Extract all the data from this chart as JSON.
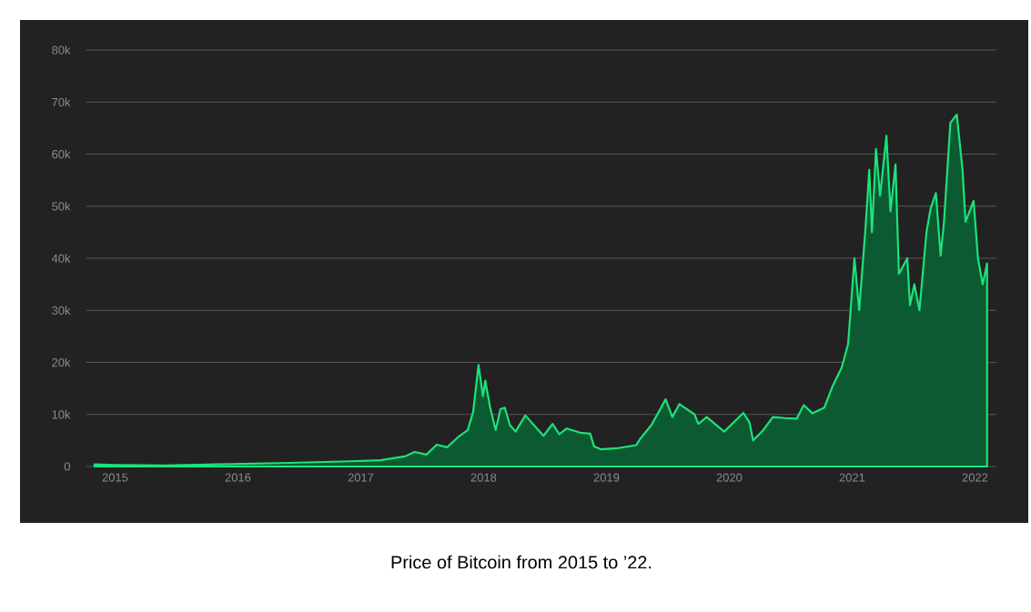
{
  "chart_data": {
    "type": "area",
    "color": "#1de27a",
    "grid": "y",
    "annotations": [
      "Price of Bitcoin from 2015 to ’22."
    ],
    "xlim": [
      "2014-10-08",
      "2022-03-06"
    ],
    "xticks": [
      {
        "value": "2015-01-01",
        "label": "2015"
      },
      {
        "value": "2016-01-01",
        "label": "2016"
      },
      {
        "value": "2017-01-01",
        "label": "2017"
      },
      {
        "value": "2018-01-01",
        "label": "2018"
      },
      {
        "value": "2019-01-01",
        "label": "2019"
      },
      {
        "value": "2020-01-01",
        "label": "2020"
      },
      {
        "value": "2021-01-01",
        "label": "2021"
      },
      {
        "value": "2022-01-01",
        "label": "2022"
      }
    ],
    "ylim": [
      0,
      80000
    ],
    "yticks": [
      0,
      {
        "value": 10000,
        "label": "10k"
      },
      {
        "value": 20000,
        "label": "20k"
      },
      {
        "value": 30000,
        "label": "30k"
      },
      {
        "value": 40000,
        "label": "40k"
      },
      {
        "value": 50000,
        "label": "50k"
      },
      {
        "value": 60000,
        "label": "60k"
      },
      {
        "value": 70000,
        "label": "70k"
      },
      {
        "value": 80000,
        "label": "80k"
      }
    ],
    "x": [
      "2014-11-01",
      "2015-01-01",
      "2015-06-01",
      "2015-11-01",
      "2016-06-01",
      "2016-12-01",
      "2017-03-01",
      "2017-05-15",
      "2017-06-10",
      "2017-07-15",
      "2017-08-15",
      "2017-09-15",
      "2017-10-20",
      "2017-11-15",
      "2017-12-01",
      "2017-12-17",
      "2017-12-30",
      "2018-01-06",
      "2018-01-20",
      "2018-02-06",
      "2018-02-20",
      "2018-03-05",
      "2018-03-20",
      "2018-04-06",
      "2018-05-05",
      "2018-06-28",
      "2018-07-25",
      "2018-08-14",
      "2018-09-05",
      "2018-10-15",
      "2018-11-14",
      "2018-11-25",
      "2018-12-15",
      "2019-02-01",
      "2019-03-31",
      "2019-04-10",
      "2019-05-15",
      "2019-06-26",
      "2019-07-16",
      "2019-08-06",
      "2019-09-20",
      "2019-10-01",
      "2019-10-26",
      "2019-12-17",
      "2020-02-12",
      "2020-03-01",
      "2020-03-12",
      "2020-04-10",
      "2020-05-10",
      "2020-06-15",
      "2020-07-20",
      "2020-08-10",
      "2020-09-05",
      "2020-10-10",
      "2020-11-05",
      "2020-12-01",
      "2020-12-20",
      "2021-01-08",
      "2021-01-22",
      "2021-02-10",
      "2021-02-21",
      "2021-03-01",
      "2021-03-13",
      "2021-03-25",
      "2021-04-13",
      "2021-04-25",
      "2021-05-10",
      "2021-05-20",
      "2021-06-14",
      "2021-06-22",
      "2021-07-05",
      "2021-07-20",
      "2021-08-10",
      "2021-08-22",
      "2021-09-07",
      "2021-09-21",
      "2021-10-01",
      "2021-10-20",
      "2021-11-08",
      "2021-11-25",
      "2021-12-04",
      "2021-12-28",
      "2022-01-10",
      "2022-01-24",
      "2022-02-06"
    ],
    "values": [
      400,
      300,
      200,
      400,
      700,
      1000,
      1200,
      2000,
      2800,
      2300,
      4200,
      3700,
      5800,
      7000,
      10500,
      19500,
      13500,
      16500,
      11500,
      7000,
      11000,
      11300,
      8000,
      6700,
      9800,
      5900,
      8200,
      6200,
      7300,
      6500,
      6300,
      3900,
      3300,
      3500,
      4100,
      5200,
      8000,
      12900,
      9500,
      12000,
      10000,
      8200,
      9500,
      6700,
      10300,
      8500,
      5000,
      6900,
      9500,
      9300,
      9200,
      11800,
      10200,
      11300,
      15600,
      19000,
      23500,
      40000,
      30000,
      46000,
      57000,
      45000,
      61000,
      52000,
      63500,
      49000,
      58000,
      37000,
      40000,
      31000,
      35000,
      30000,
      45000,
      49500,
      52500,
      40500,
      47000,
      66000,
      67600,
      57000,
      47000,
      51000,
      40000,
      35000,
      39000
    ]
  }
}
